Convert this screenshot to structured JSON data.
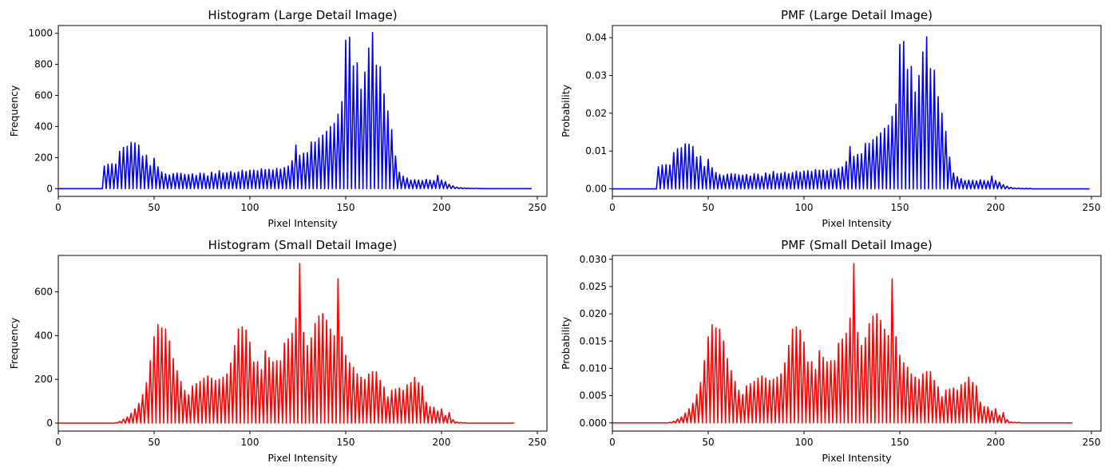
{
  "chart_data": [
    {
      "type": "line",
      "title": "Histogram (Large Detail Image)",
      "xlabel": "Pixel Intensity",
      "ylabel": "Frequency",
      "xlim": [
        0,
        255
      ],
      "ylim": [
        -50,
        1050
      ],
      "xticks": [
        0,
        50,
        100,
        150,
        200,
        250
      ],
      "yticks": [
        0,
        200,
        400,
        600,
        800,
        1000
      ],
      "ytick_labels": [
        "0",
        "200",
        "400",
        "600",
        "800",
        "1000"
      ],
      "series": [
        {
          "color": "#0000ff",
          "x_start": 0,
          "x_step": 1,
          "values": [
            0,
            0,
            0,
            0,
            0,
            0,
            0,
            0,
            0,
            0,
            0,
            0,
            0,
            0,
            0,
            0,
            0,
            0,
            0,
            0,
            0,
            0,
            0,
            0,
            145,
            0,
            158,
            0,
            160,
            0,
            158,
            0,
            240,
            0,
            265,
            0,
            272,
            0,
            298,
            0,
            295,
            0,
            280,
            0,
            210,
            0,
            215,
            0,
            148,
            0,
            195,
            0,
            140,
            0,
            108,
            0,
            95,
            0,
            88,
            0,
            97,
            0,
            100,
            0,
            98,
            0,
            92,
            0,
            90,
            0,
            95,
            0,
            85,
            0,
            100,
            0,
            98,
            0,
            82,
            0,
            105,
            0,
            95,
            0,
            115,
            0,
            100,
            0,
            102,
            0,
            110,
            0,
            100,
            0,
            108,
            0,
            118,
            0,
            110,
            0,
            118,
            0,
            120,
            0,
            115,
            0,
            128,
            0,
            122,
            0,
            125,
            0,
            120,
            0,
            130,
            0,
            125,
            0,
            135,
            0,
            145,
            0,
            180,
            0,
            280,
            0,
            215,
            0,
            228,
            0,
            232,
            0,
            300,
            0,
            300,
            0,
            325,
            0,
            345,
            0,
            370,
            0,
            400,
            0,
            420,
            0,
            480,
            0,
            560,
            0,
            955,
            0,
            975,
            0,
            790,
            0,
            810,
            0,
            640,
            0,
            750,
            0,
            905,
            0,
            1005,
            0,
            795,
            0,
            785,
            0,
            610,
            0,
            500,
            0,
            380,
            0,
            210,
            0,
            105,
            0,
            80,
            0,
            68,
            0,
            55,
            0,
            58,
            0,
            55,
            0,
            52,
            0,
            60,
            0,
            55,
            0,
            52,
            0,
            85,
            0,
            55,
            0,
            45,
            0,
            28,
            0,
            18,
            0,
            10,
            0,
            6,
            0,
            4,
            0,
            3,
            0,
            2,
            0,
            2,
            0,
            1,
            0,
            0,
            0,
            0,
            0,
            0,
            0,
            0,
            0,
            0,
            0,
            0,
            0,
            0,
            0,
            0,
            0,
            0,
            0,
            0,
            0,
            0,
            0,
            0,
            0,
            0,
            0
          ]
        }
      ]
    },
    {
      "type": "line",
      "title": "PMF (Large Detail Image)",
      "xlabel": "Pixel Intensity",
      "ylabel": "Probability",
      "xlim": [
        0,
        255
      ],
      "ylim": [
        -0.002,
        0.0432
      ],
      "xticks": [
        0,
        50,
        100,
        150,
        200,
        250
      ],
      "yticks": [
        0,
        0.01,
        0.02,
        0.03,
        0.04
      ],
      "ytick_labels": [
        "0.00",
        "0.01",
        "0.02",
        "0.03",
        "0.04"
      ],
      "series": [
        {
          "color": "#0000ff",
          "x_start": 0,
          "x_step": 1,
          "values": [
            0,
            0,
            0,
            0,
            0,
            0,
            0,
            0,
            0,
            0,
            0,
            0,
            0,
            0,
            0,
            0,
            0,
            0,
            0,
            0,
            0,
            0,
            0,
            0,
            0.0058,
            0,
            0.0063,
            0,
            0.0064,
            0,
            0.0063,
            0,
            0.0096,
            0,
            0.0106,
            0,
            0.0109,
            0,
            0.0119,
            0,
            0.0118,
            0,
            0.0112,
            0,
            0.0084,
            0,
            0.0086,
            0,
            0.0059,
            0,
            0.0078,
            0,
            0.0056,
            0,
            0.0043,
            0,
            0.0038,
            0,
            0.0035,
            0,
            0.0039,
            0,
            0.004,
            0,
            0.0039,
            0,
            0.0037,
            0,
            0.0036,
            0,
            0.0038,
            0,
            0.0034,
            0,
            0.004,
            0,
            0.0039,
            0,
            0.0033,
            0,
            0.0042,
            0,
            0.0038,
            0,
            0.0046,
            0,
            0.004,
            0,
            0.0041,
            0,
            0.0044,
            0,
            0.004,
            0,
            0.0043,
            0,
            0.0047,
            0,
            0.0044,
            0,
            0.0047,
            0,
            0.0048,
            0,
            0.0046,
            0,
            0.0051,
            0,
            0.0049,
            0,
            0.005,
            0,
            0.0048,
            0,
            0.0052,
            0,
            0.005,
            0,
            0.0054,
            0,
            0.0058,
            0,
            0.0072,
            0,
            0.0112,
            0,
            0.0086,
            0,
            0.0091,
            0,
            0.0093,
            0,
            0.012,
            0,
            0.012,
            0,
            0.013,
            0,
            0.0138,
            0,
            0.0148,
            0,
            0.016,
            0,
            0.0168,
            0,
            0.0192,
            0,
            0.0224,
            0,
            0.0382,
            0,
            0.039,
            0,
            0.0316,
            0,
            0.0324,
            0,
            0.0256,
            0,
            0.03,
            0,
            0.0362,
            0,
            0.0402,
            0,
            0.0318,
            0,
            0.0314,
            0,
            0.0244,
            0,
            0.02,
            0,
            0.0152,
            0,
            0.0084,
            0,
            0.0042,
            0,
            0.0032,
            0,
            0.0027,
            0,
            0.0022,
            0,
            0.0023,
            0,
            0.0022,
            0,
            0.0021,
            0,
            0.0024,
            0,
            0.0022,
            0,
            0.0021,
            0,
            0.0034,
            0,
            0.0022,
            0,
            0.0018,
            0,
            0.0011,
            0,
            0.0007,
            0,
            0.0004,
            0,
            0.0002,
            0,
            0.0002,
            0,
            0.0001,
            0,
            0.0001,
            0,
            0.0001,
            0,
            0,
            0,
            0,
            0,
            0,
            0,
            0,
            0,
            0,
            0,
            0,
            0,
            0,
            0,
            0,
            0,
            0,
            0,
            0,
            0,
            0,
            0,
            0,
            0,
            0,
            0,
            0,
            0,
            0,
            0
          ]
        }
      ]
    },
    {
      "type": "line",
      "title": "Histogram (Small Detail Image)",
      "xlabel": "Pixel Intensity",
      "ylabel": "Frequency",
      "xlim": [
        0,
        255
      ],
      "ylim": [
        -36.5,
        766.5
      ],
      "xticks": [
        0,
        50,
        100,
        150,
        200,
        250
      ],
      "yticks": [
        0,
        200,
        400,
        600
      ],
      "ytick_labels": [
        "0",
        "200",
        "400",
        "600"
      ],
      "series": [
        {
          "color": "#ff0000",
          "x_start": 0,
          "x_step": 1,
          "values": [
            0,
            0,
            0,
            0,
            0,
            0,
            0,
            0,
            0,
            0,
            0,
            0,
            0,
            0,
            0,
            0,
            0,
            0,
            0,
            0,
            0,
            0,
            0,
            0,
            0,
            0,
            0,
            0,
            0,
            0,
            2,
            0,
            8,
            0,
            18,
            0,
            28,
            0,
            45,
            0,
            65,
            0,
            90,
            0,
            130,
            0,
            185,
            0,
            285,
            0,
            395,
            0,
            450,
            0,
            435,
            0,
            430,
            0,
            375,
            0,
            295,
            0,
            240,
            0,
            190,
            0,
            150,
            0,
            130,
            0,
            170,
            0,
            180,
            0,
            190,
            0,
            205,
            0,
            215,
            0,
            205,
            0,
            195,
            0,
            200,
            0,
            210,
            0,
            225,
            0,
            275,
            0,
            355,
            0,
            430,
            0,
            440,
            0,
            425,
            0,
            370,
            0,
            280,
            0,
            280,
            0,
            245,
            0,
            330,
            0,
            300,
            0,
            280,
            0,
            285,
            0,
            285,
            0,
            365,
            0,
            385,
            0,
            410,
            0,
            480,
            0,
            730,
            0,
            415,
            0,
            355,
            0,
            390,
            0,
            455,
            0,
            490,
            0,
            500,
            0,
            470,
            0,
            430,
            0,
            400,
            0,
            660,
            0,
            395,
            0,
            310,
            0,
            275,
            0,
            255,
            0,
            225,
            0,
            210,
            0,
            200,
            0,
            225,
            0,
            235,
            0,
            235,
            0,
            195,
            0,
            165,
            0,
            120,
            0,
            150,
            0,
            155,
            0,
            160,
            0,
            150,
            0,
            175,
            0,
            185,
            0,
            210,
            0,
            185,
            0,
            170,
            0,
            95,
            0,
            75,
            0,
            72,
            0,
            55,
            0,
            65,
            0,
            35,
            0,
            48,
            0,
            15,
            0,
            5,
            0,
            3,
            0,
            2,
            0,
            0,
            0,
            0,
            0,
            0,
            0,
            0,
            0,
            0,
            0,
            0,
            0,
            0,
            0,
            0,
            0,
            0,
            0,
            0,
            0,
            0,
            0,
            0,
            0,
            0
          ]
        }
      ]
    },
    {
      "type": "line",
      "title": "PMF (Small Detail Image)",
      "xlabel": "Pixel Intensity",
      "ylabel": "Probability",
      "xlim": [
        0,
        255
      ],
      "ylim": [
        -0.0015,
        0.0307
      ],
      "xticks": [
        0,
        50,
        100,
        150,
        200,
        250
      ],
      "yticks": [
        0,
        0.005,
        0.01,
        0.015,
        0.02,
        0.025,
        0.03
      ],
      "ytick_labels": [
        "0.000",
        "0.005",
        "0.010",
        "0.015",
        "0.020",
        "0.025",
        "0.030"
      ],
      "series": [
        {
          "color": "#ff0000",
          "x_start": 0,
          "x_step": 1,
          "values": [
            0,
            0,
            0,
            0,
            0,
            0,
            0,
            0,
            0,
            0,
            0,
            0,
            0,
            0,
            0,
            0,
            0,
            0,
            0,
            0,
            0,
            0,
            0,
            0,
            0,
            0,
            0,
            0,
            0,
            0,
            0.0001,
            0,
            0.0003,
            0,
            0.0007,
            0,
            0.0011,
            0,
            0.0018,
            0,
            0.0026,
            0,
            0.0036,
            0,
            0.0052,
            0,
            0.0074,
            0,
            0.0114,
            0,
            0.0158,
            0,
            0.018,
            0,
            0.0174,
            0,
            0.0172,
            0,
            0.015,
            0,
            0.0118,
            0,
            0.0096,
            0,
            0.0076,
            0,
            0.006,
            0,
            0.0052,
            0,
            0.0068,
            0,
            0.0072,
            0,
            0.0076,
            0,
            0.0082,
            0,
            0.0086,
            0,
            0.0082,
            0,
            0.0078,
            0,
            0.008,
            0,
            0.0084,
            0,
            0.009,
            0,
            0.011,
            0,
            0.0142,
            0,
            0.0172,
            0,
            0.0176,
            0,
            0.017,
            0,
            0.0148,
            0,
            0.0112,
            0,
            0.0112,
            0,
            0.0098,
            0,
            0.0132,
            0,
            0.012,
            0,
            0.0112,
            0,
            0.0114,
            0,
            0.0114,
            0,
            0.0146,
            0,
            0.0154,
            0,
            0.0164,
            0,
            0.0192,
            0,
            0.0292,
            0,
            0.0166,
            0,
            0.0142,
            0,
            0.0156,
            0,
            0.0182,
            0,
            0.0196,
            0,
            0.02,
            0,
            0.0188,
            0,
            0.0172,
            0,
            0.016,
            0,
            0.0264,
            0,
            0.0158,
            0,
            0.0124,
            0,
            0.011,
            0,
            0.0102,
            0,
            0.009,
            0,
            0.0084,
            0,
            0.008,
            0,
            0.009,
            0,
            0.0094,
            0,
            0.0094,
            0,
            0.0078,
            0,
            0.0066,
            0,
            0.0048,
            0,
            0.006,
            0,
            0.0062,
            0,
            0.0064,
            0,
            0.006,
            0,
            0.007,
            0,
            0.0074,
            0,
            0.0084,
            0,
            0.0074,
            0,
            0.0068,
            0,
            0.0038,
            0,
            0.003,
            0,
            0.0029,
            0,
            0.0022,
            0,
            0.0026,
            0,
            0.0014,
            0,
            0.0019,
            0,
            0.0006,
            0,
            0.0002,
            0,
            0.0001,
            0,
            0.0001,
            0,
            0,
            0,
            0,
            0,
            0,
            0,
            0,
            0,
            0,
            0,
            0,
            0,
            0,
            0,
            0,
            0,
            0,
            0,
            0,
            0,
            0,
            0,
            0,
            0,
            0,
            0,
            0
          ]
        }
      ]
    }
  ]
}
